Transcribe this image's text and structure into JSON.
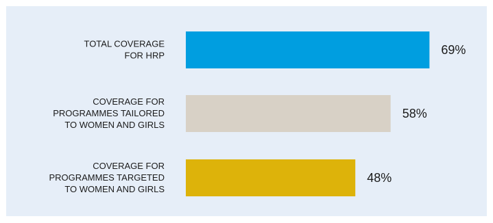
{
  "chart_data": {
    "type": "bar",
    "orientation": "horizontal",
    "categories": [
      "TOTAL COVERAGE FOR HRP",
      "COVERAGE FOR PROGRAMMES TAILORED TO WOMEN AND GIRLS",
      "COVERAGE FOR PROGRAMMES TARGETED TO WOMEN AND GIRLS"
    ],
    "category_lines": [
      [
        "TOTAL COVERAGE",
        "FOR HRP"
      ],
      [
        "COVERAGE FOR",
        "PROGRAMMES TAILORED",
        "TO WOMEN AND GIRLS"
      ],
      [
        "COVERAGE FOR",
        "PROGRAMMES TARGETED",
        "TO WOMEN AND GIRLS"
      ]
    ],
    "values": [
      69,
      58,
      48
    ],
    "value_labels": [
      "69%",
      "58%",
      "48%"
    ],
    "colors": [
      "#009ee0",
      "#d8d1c6",
      "#ddb30a"
    ],
    "xlim": [
      0,
      100
    ],
    "grid": false,
    "legend": "none",
    "title": "",
    "xlabel": "",
    "ylabel": ""
  },
  "background_color": "#e6eef8"
}
